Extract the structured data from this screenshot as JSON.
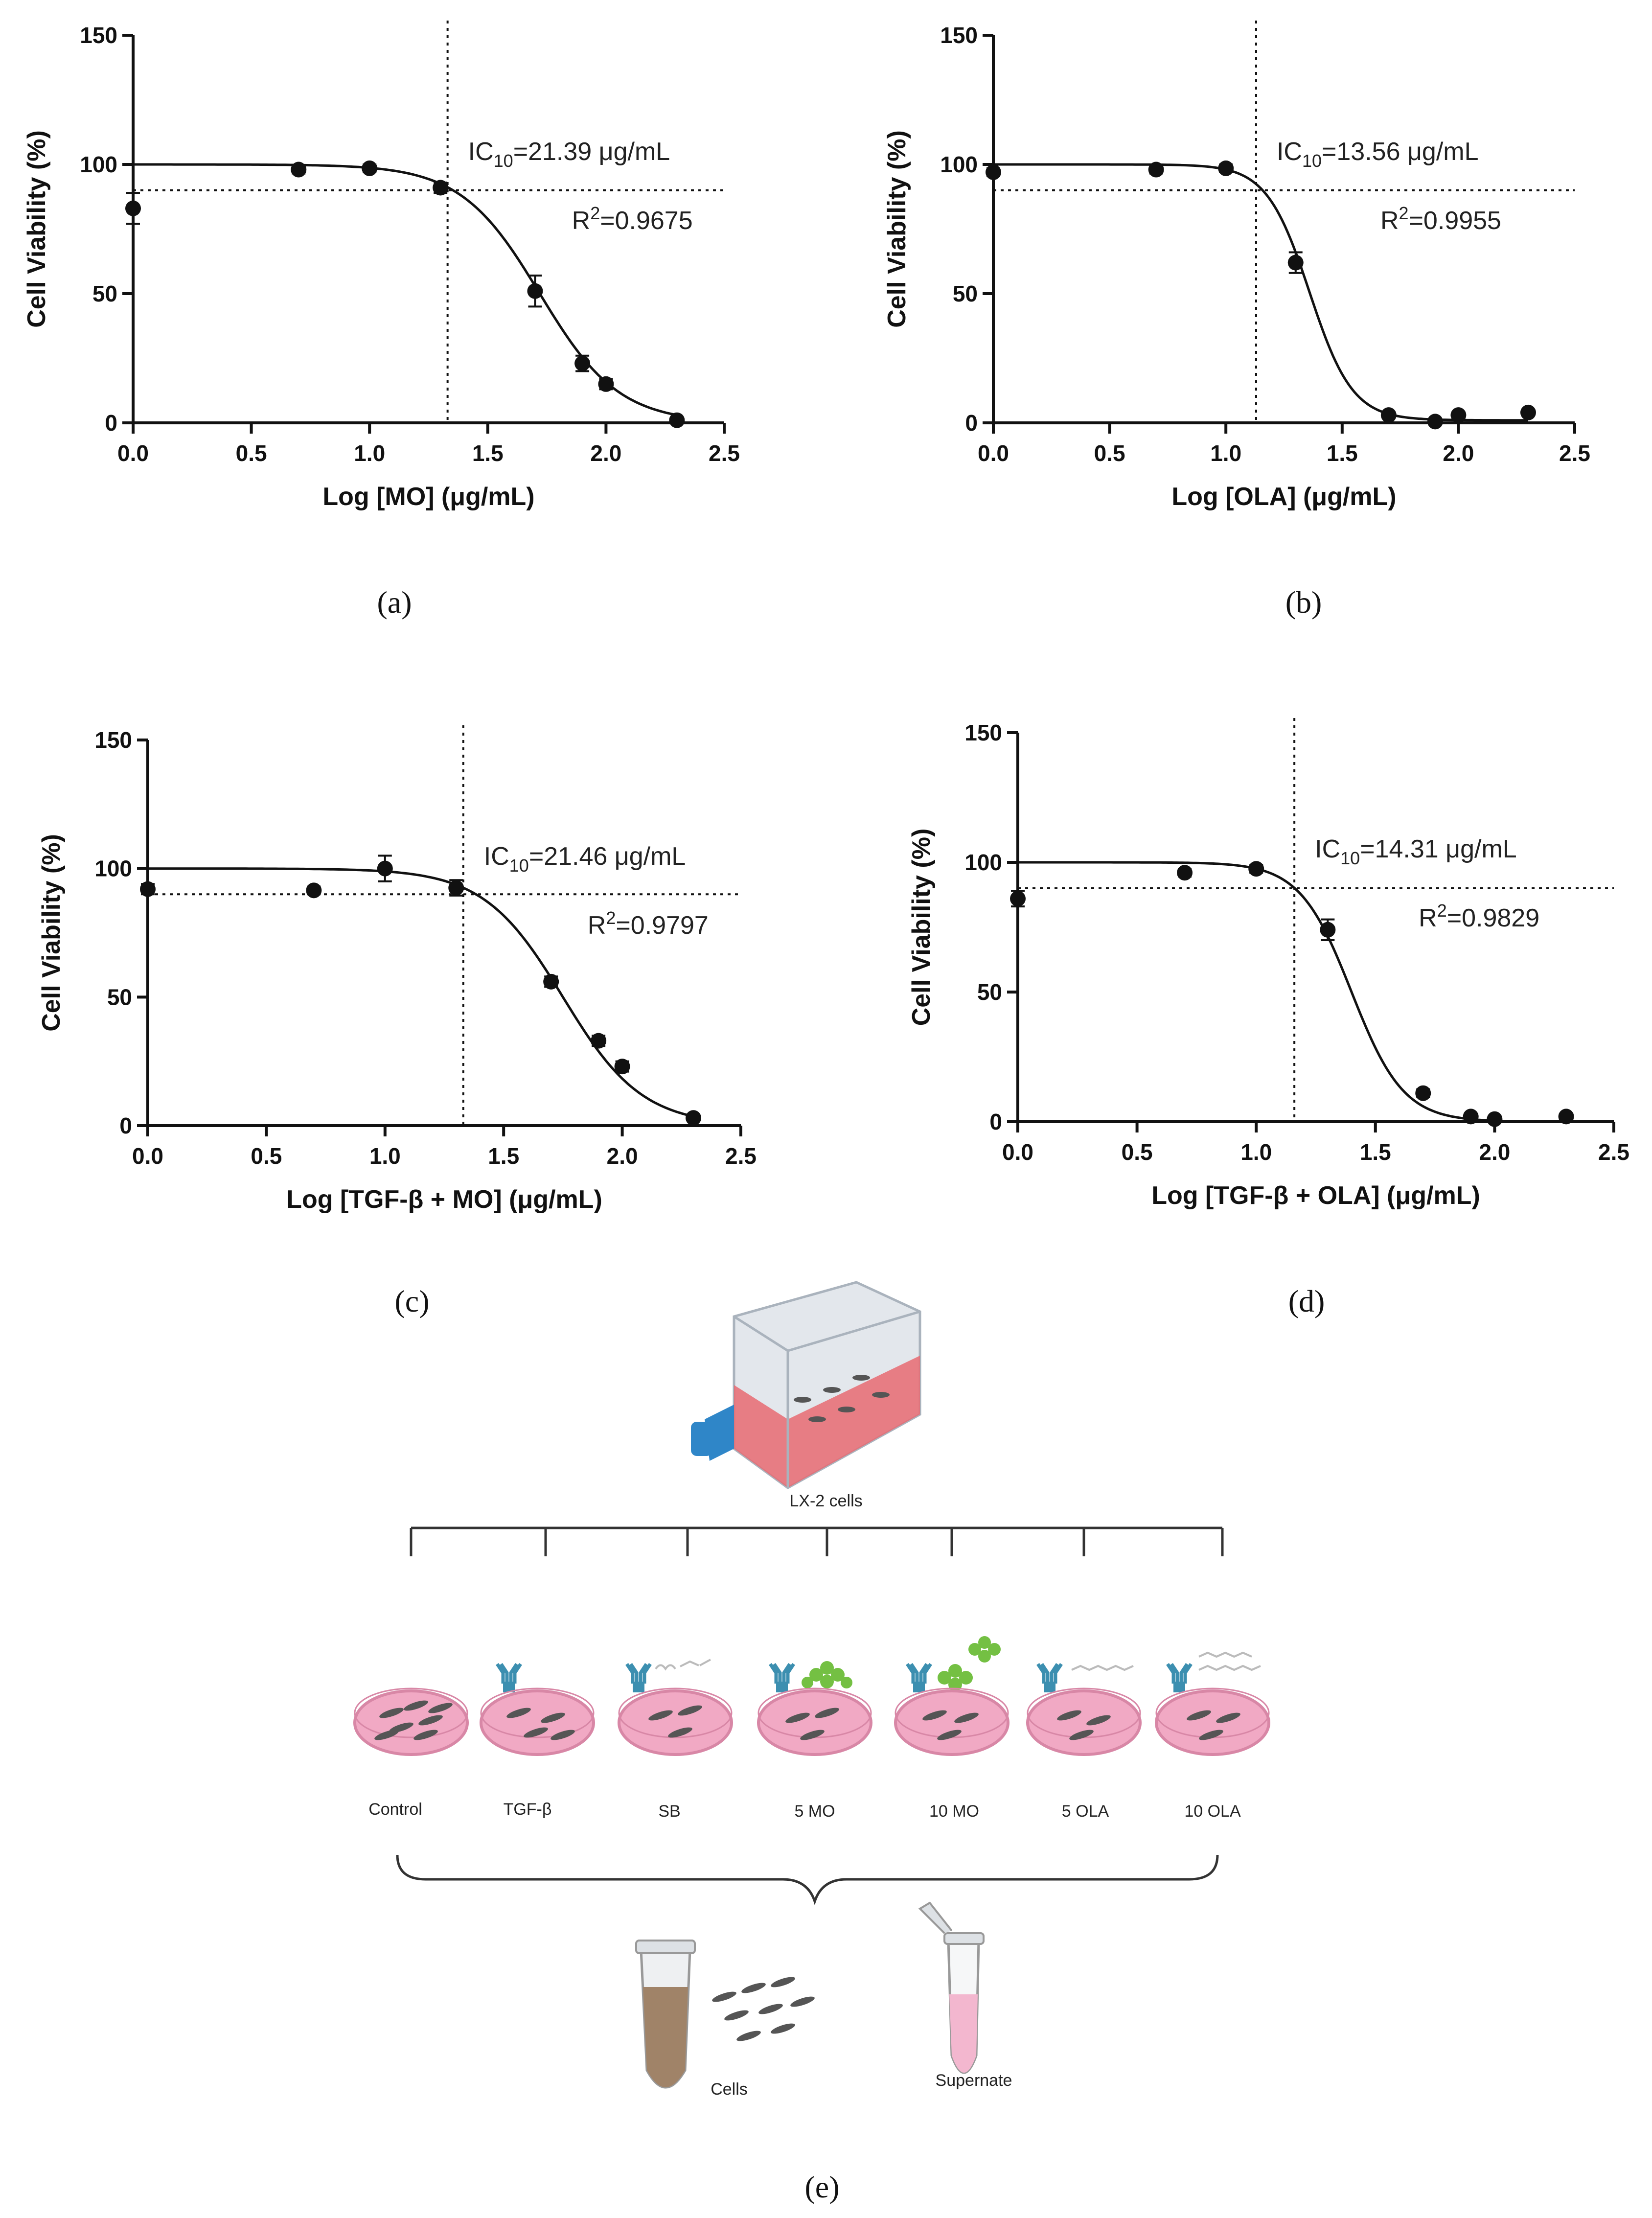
{
  "chart_data": [
    {
      "type": "scatter",
      "panel_label": "(a)",
      "xlabel": "Log [MO] (μg/mL)",
      "ylabel": "Cell Viability (%)",
      "xlim": [
        0,
        2.5
      ],
      "ylim": [
        0,
        150
      ],
      "xticks": [
        "0.0",
        "0.5",
        "1.0",
        "1.5",
        "2.0",
        "2.5"
      ],
      "yticks": [
        "0",
        "50",
        "100",
        "150"
      ],
      "ic10_value": 1.33,
      "ic10_label": "IC",
      "ic10_sub": "10",
      "ic10_text": "=21.39 μg/mL",
      "r2_label": "R",
      "r2_sup": "2",
      "r2_text": "=0.9675",
      "hline_y": 90,
      "fit": {
        "top": 100,
        "bottom": 0,
        "log_ic50": 1.72,
        "hill": 2.6
      },
      "x": [
        0.0,
        0.7,
        1.0,
        1.3,
        1.7,
        1.9,
        2.0,
        2.3
      ],
      "y": [
        83,
        98,
        98.5,
        91,
        51,
        23,
        15,
        1
      ],
      "err": [
        6,
        1.5,
        1.5,
        2,
        6,
        3,
        2,
        1
      ]
    },
    {
      "type": "scatter",
      "panel_label": "(b)",
      "xlabel": "Log [OLA] (μg/mL)",
      "ylabel": "Cell Viability (%)",
      "xlim": [
        0,
        2.5
      ],
      "ylim": [
        0,
        150
      ],
      "xticks": [
        "0.0",
        "0.5",
        "1.0",
        "1.5",
        "2.0",
        "2.5"
      ],
      "yticks": [
        "0",
        "50",
        "100",
        "150"
      ],
      "ic10_value": 1.13,
      "ic10_label": "IC",
      "ic10_sub": "10",
      "ic10_text": "=13.56 μg/mL",
      "r2_label": "R",
      "r2_sup": "2",
      "r2_text": "=0.9955",
      "hline_y": 90,
      "fit": {
        "top": 100,
        "bottom": 1,
        "log_ic50": 1.36,
        "hill": 4.7
      },
      "x": [
        0.0,
        0.7,
        1.0,
        1.3,
        1.7,
        1.9,
        2.0,
        2.3
      ],
      "y": [
        97,
        98,
        98.5,
        62,
        3,
        0.5,
        3,
        4
      ],
      "err": [
        1.5,
        1.5,
        1.5,
        4,
        1,
        1,
        1,
        1
      ]
    },
    {
      "type": "scatter",
      "panel_label": "(c)",
      "xlabel": "Log [TGF-β + MO] (μg/mL)",
      "ylabel": "Cell Viability (%)",
      "xlim": [
        0,
        2.5
      ],
      "ylim": [
        0,
        150
      ],
      "xticks": [
        "0.0",
        "0.5",
        "1.0",
        "1.5",
        "2.0",
        "2.5"
      ],
      "yticks": [
        "0",
        "50",
        "100",
        "150"
      ],
      "ic10_value": 1.33,
      "ic10_label": "IC",
      "ic10_sub": "10",
      "ic10_text": "=21.46 μg/mL",
      "r2_label": "R",
      "r2_sup": "2",
      "r2_text": "=0.9797",
      "hline_y": 90,
      "fit": {
        "top": 100,
        "bottom": 0,
        "log_ic50": 1.75,
        "hill": 2.6
      },
      "x": [
        0.0,
        0.7,
        1.0,
        1.3,
        1.7,
        1.9,
        2.0,
        2.3
      ],
      "y": [
        92,
        91.5,
        100,
        92.5,
        56,
        33,
        23,
        3
      ],
      "err": [
        2,
        1.5,
        5,
        3,
        2,
        2,
        2,
        1
      ]
    },
    {
      "type": "scatter",
      "panel_label": "(d)",
      "xlabel": "Log [TGF-β + OLA] (μg/mL)",
      "ylabel": "Cell Viability (%)",
      "xlim": [
        0,
        2.5
      ],
      "ylim": [
        0,
        150
      ],
      "xticks": [
        "0.0",
        "0.5",
        "1.0",
        "1.5",
        "2.0",
        "2.5"
      ],
      "yticks": [
        "0",
        "50",
        "100",
        "150"
      ],
      "ic10_value": 1.16,
      "ic10_label": "IC",
      "ic10_sub": "10",
      "ic10_text": "=14.31 μg/mL",
      "r2_label": "R",
      "r2_sup": "2",
      "r2_text": "=0.9829",
      "hline_y": 90,
      "fit": {
        "top": 100,
        "bottom": 0,
        "log_ic50": 1.4,
        "hill": 4.0
      },
      "x": [
        0.0,
        0.7,
        1.0,
        1.3,
        1.7,
        1.9,
        2.0,
        2.3
      ],
      "y": [
        86,
        96,
        97.5,
        74,
        11,
        2,
        1,
        2
      ],
      "err": [
        3,
        1.5,
        1.5,
        4,
        1.5,
        1,
        1,
        1
      ]
    }
  ],
  "diagram": {
    "flask_label": "LX-2 cells",
    "groups": [
      "Control",
      "TGF-β",
      "SB",
      "5 MO",
      "10 MO",
      "5 OLA",
      "10 OLA"
    ],
    "outputs": [
      "Cells",
      "Supernate"
    ],
    "panel_label": "(e)"
  },
  "colors": {
    "dish_fill": "#f1a9c4",
    "dish_rim": "#d887a6",
    "flask_media": "#e86a72",
    "cap_blue": "#2f86c8",
    "antibody": "#3c8fb0",
    "mo_green": "#74c043",
    "cell_tube": "#a08368"
  }
}
